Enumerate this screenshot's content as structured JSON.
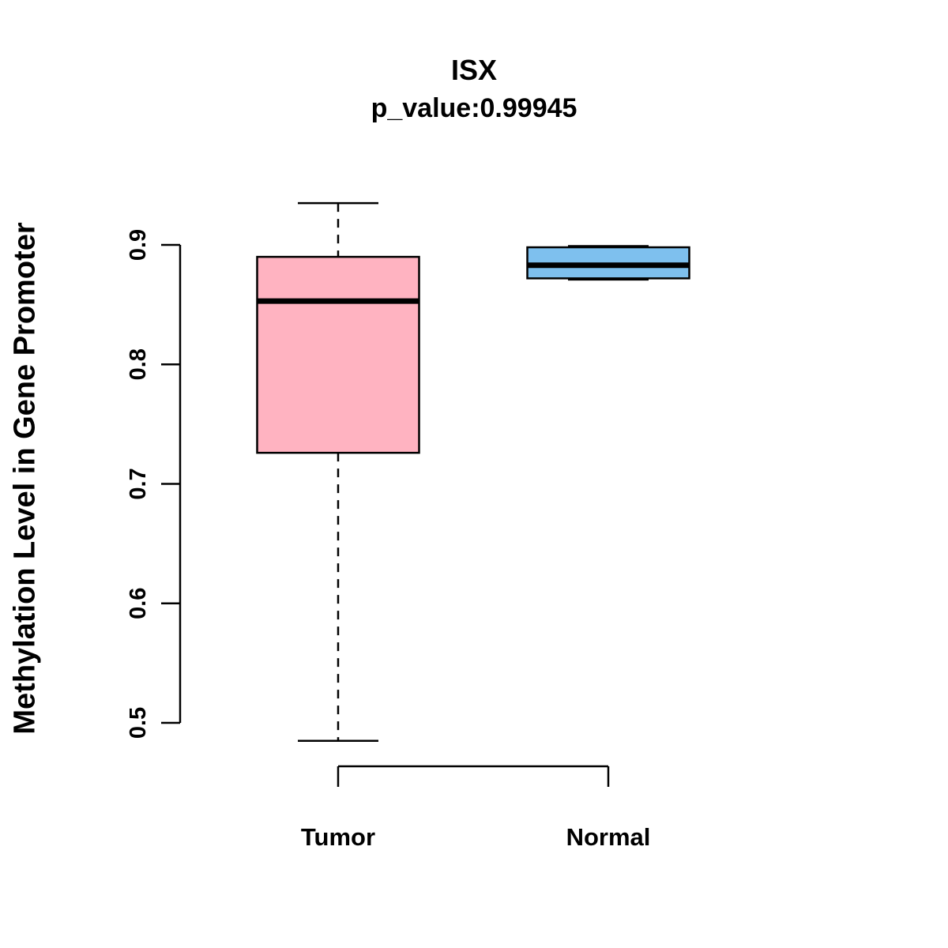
{
  "chart_data": {
    "type": "boxplot",
    "title": "ISX",
    "subtitle": "p_value:0.99945",
    "ylabel": "Methylation Level in Gene Promoter",
    "xlabel": "",
    "grid": false,
    "legend": "none",
    "yaxis": {
      "ticks": [
        0.5,
        0.6,
        0.7,
        0.8,
        0.9
      ],
      "tick_labels": [
        "0.5",
        "0.6",
        "0.7",
        "0.8",
        "0.9"
      ],
      "range_shown": [
        0.47,
        0.95
      ]
    },
    "categories": [
      "Tumor",
      "Normal"
    ],
    "series": [
      {
        "name": "Tumor",
        "color": "#FFB3C1",
        "stroke": "#000000",
        "lower_whisker": 0.485,
        "q1": 0.726,
        "median": 0.853,
        "q3": 0.89,
        "upper_whisker": 0.935
      },
      {
        "name": "Normal",
        "color": "#7EC0EE",
        "stroke": "#000000",
        "lower_whisker": 0.871,
        "q1": 0.872,
        "median": 0.883,
        "q3": 0.898,
        "upper_whisker": 0.899
      }
    ]
  }
}
